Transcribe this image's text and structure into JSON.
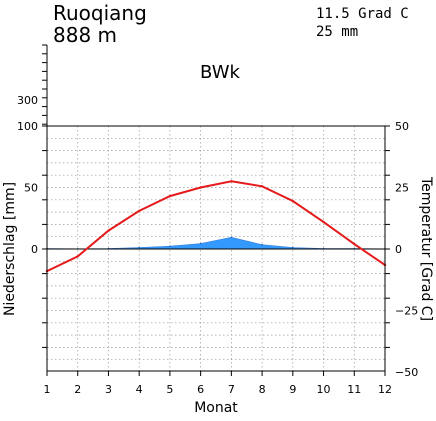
{
  "header": {
    "station": "Ruoqiang",
    "elevation": "888 m",
    "mean_temp": "11.5 Grad C",
    "annual_precip": "25 mm",
    "climate_class": "BWk"
  },
  "chart_data": {
    "type": "line",
    "title": "",
    "xlabel": "Monat",
    "ylabel_left": "Niederschlag [mm]",
    "ylabel_right": "Temperatur [Grad C]",
    "x": [
      1,
      2,
      3,
      4,
      5,
      6,
      7,
      8,
      9,
      10,
      11,
      12
    ],
    "x_ticks": [
      "1",
      "2",
      "3",
      "4",
      "5",
      "6",
      "7",
      "8",
      "9",
      "10",
      "11",
      "12"
    ],
    "left_axis": {
      "ylim": [
        -100,
        100
      ],
      "ticks": [
        0,
        50,
        100
      ],
      "tick_labels": [
        "0",
        "50",
        "100"
      ]
    },
    "left_axis_compressed": {
      "ticks": [
        300
      ],
      "tick_labels": [
        "300"
      ]
    },
    "right_axis": {
      "ylim": [
        -50,
        50
      ],
      "ticks": [
        -50,
        -25,
        0,
        25,
        50
      ],
      "tick_labels": [
        "−50",
        "−25",
        "0",
        "25",
        "50"
      ]
    },
    "grid": true,
    "series": [
      {
        "role": "temperature",
        "axis": "right",
        "color": "#e41a1c",
        "values": [
          -9,
          -3,
          7.5,
          15.5,
          21.5,
          25,
          27.5,
          25.5,
          19.5,
          11,
          2,
          -6.5
        ]
      },
      {
        "role": "precipitation",
        "axis": "left",
        "color": "#3399ff",
        "values": [
          0.3,
          0.2,
          0.4,
          1.2,
          2.3,
          4.5,
          9.5,
          3.5,
          1.2,
          0.3,
          0.3,
          0.2
        ]
      }
    ]
  }
}
